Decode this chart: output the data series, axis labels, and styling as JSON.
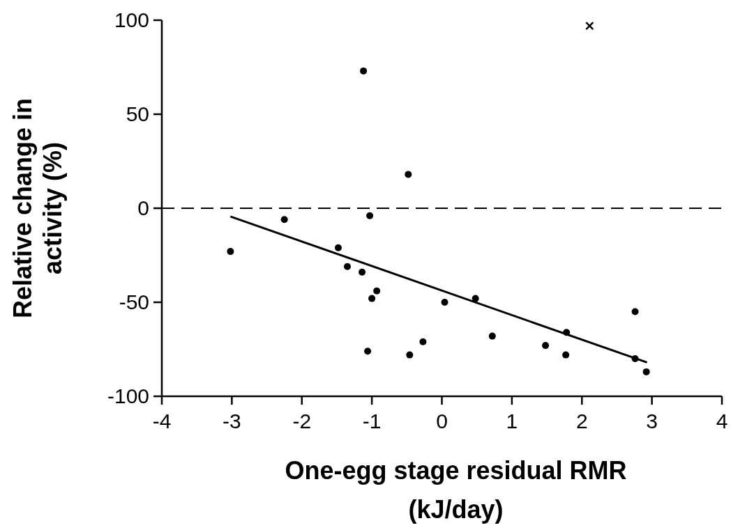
{
  "chart_data": {
    "type": "scatter",
    "xlabel": "One-egg stage residual RMR\n(kJ/day)",
    "ylabel": "Relative change in\nactivity (%)",
    "xlim": [
      -4,
      4
    ],
    "xticks": [
      -4,
      -3,
      -2,
      -1,
      0,
      1,
      2,
      3,
      4
    ],
    "ylim": [
      -100,
      100
    ],
    "yticks": [
      -100,
      -50,
      0,
      50,
      100
    ],
    "grid": false,
    "series": [
      {
        "marker": "circle",
        "color": "#000000",
        "x": [
          -3.02,
          -2.25,
          -1.12,
          -0.48,
          -1.03,
          -1.48,
          -1.35,
          -1.14,
          -0.93,
          -1.0,
          -1.06,
          -0.46,
          -0.27,
          0.04,
          0.48,
          0.72,
          1.48,
          1.78,
          1.77,
          2.76,
          2.76,
          2.92
        ],
        "values": [
          -23,
          -6,
          73,
          18,
          -4,
          -21,
          -31,
          -34,
          -44,
          -48,
          -76,
          -78,
          -71,
          -50,
          -48,
          -68,
          -73,
          -66,
          -78,
          -55,
          -80,
          -87
        ]
      },
      {
        "marker": "cross",
        "color": "#000000",
        "x": [
          2.11
        ],
        "values": [
          97
        ]
      },
      {
        "type": "line",
        "marker": "none",
        "line_style": "solid",
        "color": "#000000",
        "x": [
          -3.02,
          2.93
        ],
        "values": [
          -4.4,
          -82
        ]
      }
    ],
    "ref_lines": [
      {
        "axis": "y",
        "value": 0,
        "color": "#000000",
        "line_style": "dashed"
      }
    ]
  }
}
